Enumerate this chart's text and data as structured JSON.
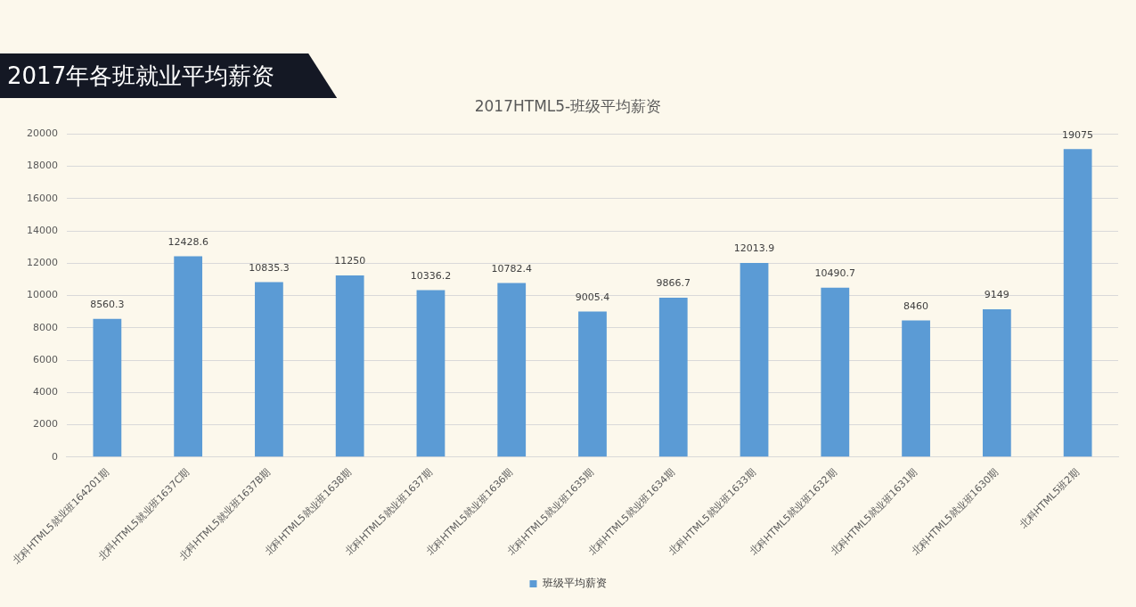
{
  "chart_data": {
    "type": "bar",
    "title": "2017年各班就业平均薪资",
    "subtitle": "2017HTML5-班级平均薪资",
    "categories": [
      "北科HTML5就业班164201期",
      "北科HTML5就业班1637C期",
      "北科HTML5就业班1637B期",
      "北科HTML5就业班1638期",
      "北科HTML5就业班1637期",
      "北科HTML5就业班1636期",
      "北科HTML5就业班1635期",
      "北科HTML5就业班1634期",
      "北科HTML5就业班1633期",
      "北科HTML5就业班1632期",
      "北科HTML5就业班1631期",
      "北科HTML5就业班1630期",
      "北科HTML5班2期"
    ],
    "series": [
      {
        "name": "班级平均薪资",
        "color": "#5b9bd5",
        "values": [
          8560.3,
          12428.6,
          10835.3,
          11250,
          10336.2,
          10782.4,
          9005.4,
          9866.7,
          12013.9,
          10490.7,
          8460,
          9149,
          19075
        ]
      }
    ],
    "data_labels": true,
    "ylim": [
      0,
      20000
    ],
    "yticks": [
      0,
      2000,
      4000,
      6000,
      8000,
      10000,
      12000,
      14000,
      16000,
      18000,
      20000
    ],
    "grid": "y",
    "legend": "bottom"
  }
}
